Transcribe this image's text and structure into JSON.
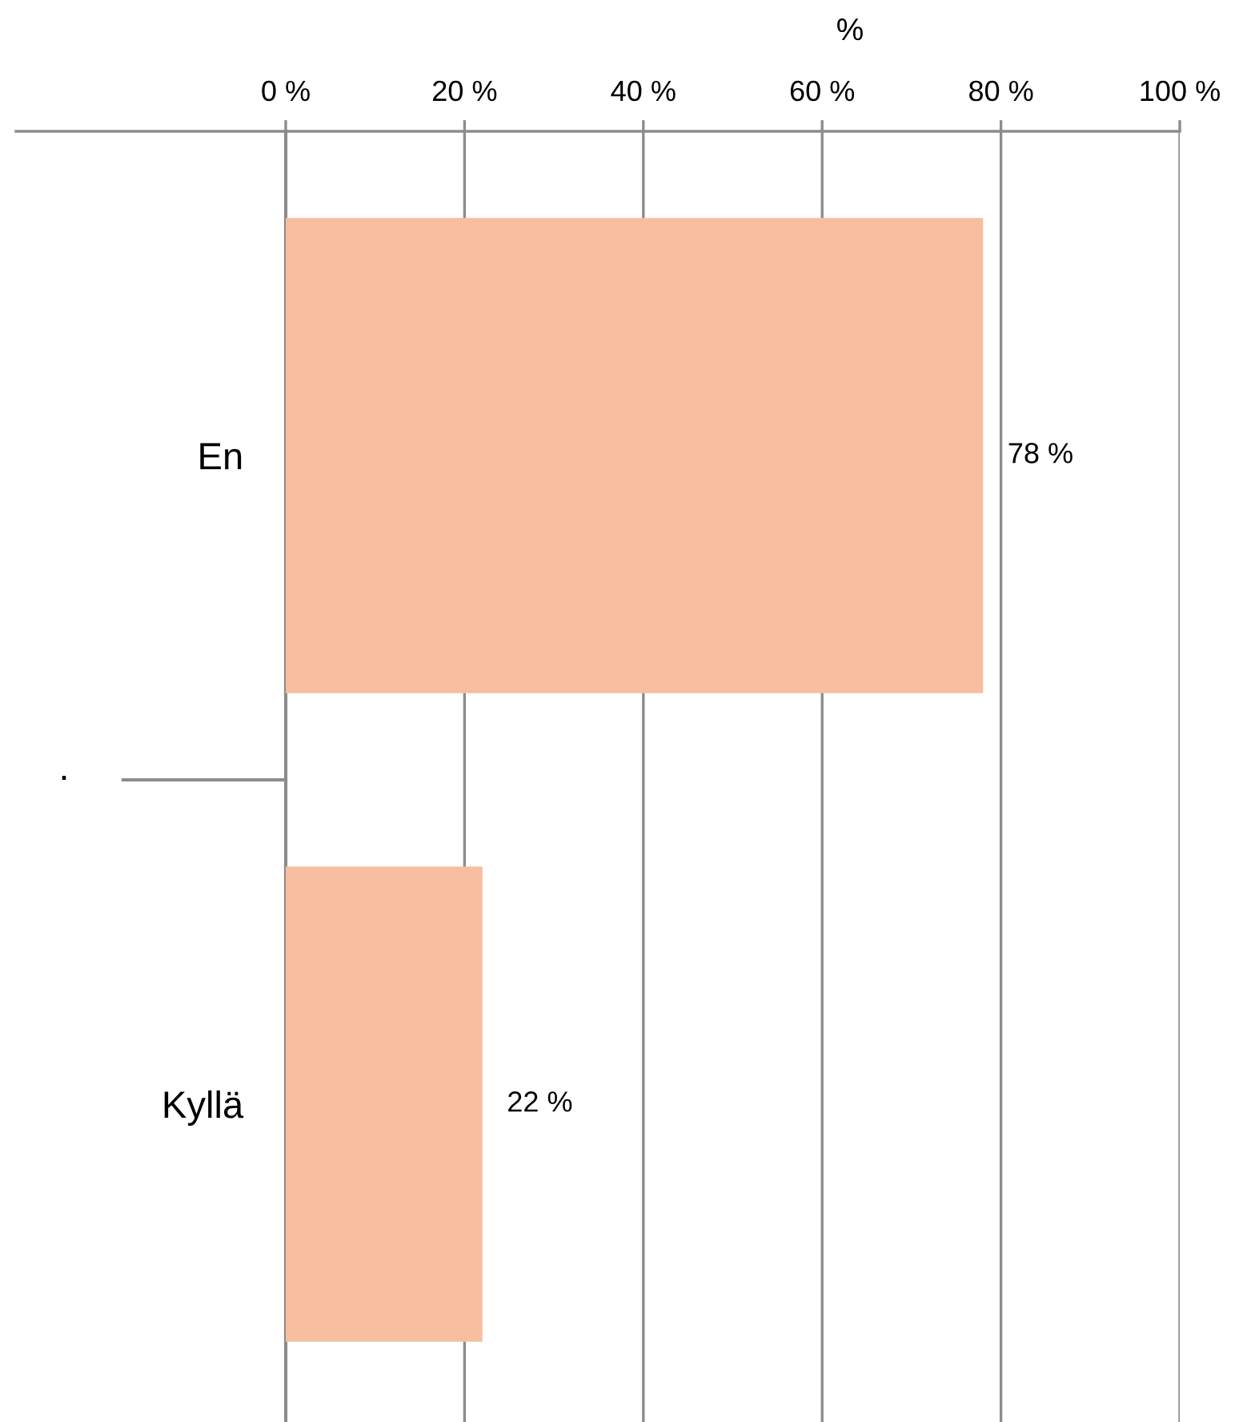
{
  "chart_data": {
    "type": "bar",
    "orientation": "horizontal",
    "xlabel": "%",
    "categories": [
      "En",
      "Kyllä"
    ],
    "values": [
      78,
      22
    ],
    "color": "#f8bea0",
    "value_labels": [
      "78 %",
      "22 %"
    ],
    "xlim": [
      0,
      100
    ],
    "xticks": [
      {
        "value": 0,
        "label": "0 %"
      },
      {
        "value": 20,
        "label": "20 %"
      },
      {
        "value": 40,
        "label": "40 %"
      },
      {
        "value": 60,
        "label": "60 %"
      },
      {
        "value": 80,
        "label": "80 %"
      },
      {
        "value": 100,
        "label": "100 %"
      }
    ],
    "grid": "x",
    "annotations": [
      "."
    ]
  }
}
